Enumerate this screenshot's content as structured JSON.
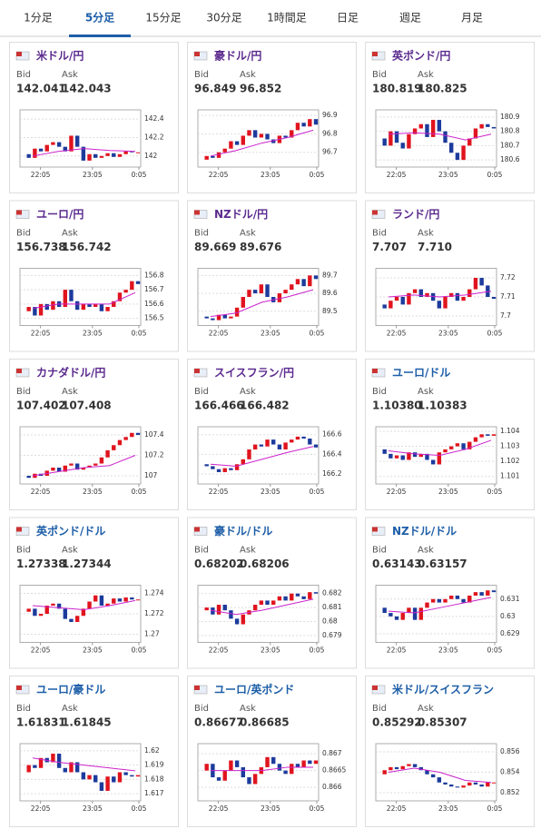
{
  "tabs": [
    "1分足",
    "5分足",
    "15分足",
    "30分足",
    "1時間足",
    "日足",
    "週足",
    "月足"
  ],
  "active_tab": 1,
  "bid_label": "Bid",
  "ask_label": "Ask",
  "xticks": [
    "22:05",
    "23:05",
    "0:05"
  ],
  "panels": [
    {
      "name": "米ドル/円",
      "color": "#5b2a8e",
      "bid": "142.041",
      "ask": "142.043",
      "yticks": [
        142.4,
        142.2,
        142
      ],
      "ylim": [
        141.88,
        142.5
      ],
      "close": [
        142.02,
        141.98,
        142.08,
        142.05,
        142.12,
        142.15,
        142.1,
        142.05,
        142.22,
        142.1,
        141.95,
        142.02,
        141.98,
        142.0,
        142.03,
        141.99,
        142.02,
        142.05,
        142.04,
        142.04
      ],
      "ma": [
        142.0,
        142.05,
        142.08,
        142.06,
        142.05
      ]
    },
    {
      "name": "豪ドル/円",
      "color": "#5b2a8e",
      "bid": "96.849",
      "ask": "96.852",
      "yticks": [
        96.9,
        96.8,
        96.7
      ],
      "ylim": [
        96.62,
        96.93
      ],
      "close": [
        96.66,
        96.68,
        96.67,
        96.7,
        96.72,
        96.76,
        96.74,
        96.79,
        96.82,
        96.78,
        96.8,
        96.77,
        96.75,
        96.79,
        96.78,
        96.82,
        96.86,
        96.84,
        96.88,
        96.85
      ],
      "ma": [
        96.68,
        96.71,
        96.75,
        96.78,
        96.82
      ]
    },
    {
      "name": "英ポンド/円",
      "color": "#5b2a8e",
      "bid": "180.819",
      "ask": "180.825",
      "yticks": [
        180.9,
        180.8,
        180.7,
        180.6
      ],
      "ylim": [
        180.55,
        180.95
      ],
      "close": [
        180.75,
        180.7,
        180.8,
        180.72,
        180.68,
        180.78,
        180.82,
        180.85,
        180.76,
        180.88,
        180.8,
        180.72,
        180.65,
        180.6,
        180.7,
        180.75,
        180.82,
        180.85,
        180.83,
        180.82
      ],
      "ma": [
        180.78,
        180.79,
        180.78,
        180.74,
        180.78
      ]
    },
    {
      "name": "ユーロ/円",
      "color": "#5b2a8e",
      "bid": "156.738",
      "ask": "156.742",
      "yticks": [
        156.8,
        156.7,
        156.6,
        156.5
      ],
      "ylim": [
        156.45,
        156.85
      ],
      "close": [
        156.55,
        156.58,
        156.52,
        156.6,
        156.56,
        156.62,
        156.58,
        156.7,
        156.62,
        156.56,
        156.6,
        156.58,
        156.6,
        156.55,
        156.58,
        156.62,
        156.68,
        156.7,
        156.76,
        156.74
      ],
      "ma": [
        156.57,
        156.6,
        156.6,
        156.6,
        156.68
      ]
    },
    {
      "name": "NZドル/円",
      "color": "#5b2a8e",
      "bid": "89.669",
      "ask": "89.676",
      "yticks": [
        89.7,
        89.6,
        89.5
      ],
      "ylim": [
        89.42,
        89.74
      ],
      "close": [
        89.47,
        89.46,
        89.45,
        89.48,
        89.46,
        89.47,
        89.52,
        89.58,
        89.62,
        89.6,
        89.65,
        89.58,
        89.55,
        89.6,
        89.62,
        89.65,
        89.68,
        89.64,
        89.7,
        89.68
      ],
      "ma": [
        89.47,
        89.49,
        89.55,
        89.58,
        89.62
      ]
    },
    {
      "name": "ランド/円",
      "color": "#5b2a8e",
      "bid": "7.707",
      "ask": "7.710",
      "yticks": [
        7.72,
        7.71,
        7.7
      ],
      "ylim": [
        7.695,
        7.725
      ],
      "close": [
        7.706,
        7.704,
        7.708,
        7.71,
        7.706,
        7.712,
        7.714,
        7.71,
        7.712,
        7.708,
        7.704,
        7.71,
        7.712,
        7.708,
        7.71,
        7.714,
        7.72,
        7.716,
        7.71,
        7.709
      ],
      "ma": [
        7.71,
        7.711,
        7.71,
        7.711,
        7.713
      ]
    },
    {
      "name": "カナダドル/円",
      "color": "#5b2a8e",
      "bid": "107.402",
      "ask": "107.408",
      "yticks": [
        107.4,
        107.2,
        107
      ],
      "ylim": [
        106.92,
        107.48
      ],
      "close": [
        107.0,
        106.98,
        107.02,
        107.0,
        107.05,
        107.08,
        107.04,
        107.1,
        107.12,
        107.06,
        107.08,
        107.1,
        107.12,
        107.18,
        107.25,
        107.3,
        107.35,
        107.38,
        107.42,
        107.4
      ],
      "ma": [
        107.0,
        107.04,
        107.08,
        107.1,
        107.2
      ]
    },
    {
      "name": "スイスフラン/円",
      "color": "#5b2a8e",
      "bid": "166.466",
      "ask": "166.482",
      "yticks": [
        166.6,
        166.4,
        166.2
      ],
      "ylim": [
        166.1,
        166.68
      ],
      "close": [
        166.3,
        166.28,
        166.25,
        166.22,
        166.26,
        166.24,
        166.3,
        166.35,
        166.45,
        166.5,
        166.48,
        166.55,
        166.5,
        166.45,
        166.52,
        166.55,
        166.58,
        166.56,
        166.5,
        166.47
      ],
      "ma": [
        166.3,
        166.28,
        166.35,
        166.42,
        166.48
      ]
    },
    {
      "name": "ユーロ/ドル",
      "color": "#1d5ea8",
      "bid": "1.10380",
      "ask": "1.10383",
      "yticks": [
        1.104,
        1.103,
        1.102,
        1.101
      ],
      "ylim": [
        1.1005,
        1.1043
      ],
      "close": [
        1.1028,
        1.1025,
        1.1022,
        1.1024,
        1.1021,
        1.1026,
        1.1023,
        1.1025,
        1.1021,
        1.1018,
        1.1026,
        1.1028,
        1.103,
        1.1032,
        1.1028,
        1.1033,
        1.1036,
        1.1038,
        1.1037,
        1.1038
      ],
      "ma": [
        1.1027,
        1.1025,
        1.1024,
        1.1028,
        1.1034
      ]
    },
    {
      "name": "英ポンド/ドル",
      "color": "#1d5ea8",
      "bid": "1.27338",
      "ask": "1.27344",
      "yticks": [
        1.274,
        1.272,
        1.27
      ],
      "ylim": [
        1.2692,
        1.2748
      ],
      "close": [
        1.2722,
        1.2725,
        1.2718,
        1.272,
        1.2728,
        1.273,
        1.2725,
        1.2715,
        1.2712,
        1.2718,
        1.2725,
        1.2732,
        1.2738,
        1.2728,
        1.273,
        1.2735,
        1.2732,
        1.2736,
        1.2734,
        1.2734
      ],
      "ma": [
        1.2728,
        1.2726,
        1.2724,
        1.2728,
        1.2733
      ]
    },
    {
      "name": "豪ドル/ドル",
      "color": "#1d5ea8",
      "bid": "0.68202",
      "ask": "0.68206",
      "yticks": [
        0.682,
        0.681,
        0.68,
        0.679
      ],
      "ylim": [
        0.6785,
        0.6826
      ],
      "close": [
        0.6808,
        0.681,
        0.6805,
        0.6812,
        0.6808,
        0.6802,
        0.6798,
        0.6805,
        0.6808,
        0.6812,
        0.6815,
        0.6812,
        0.6815,
        0.6818,
        0.6815,
        0.682,
        0.6818,
        0.6816,
        0.6821,
        0.682
      ],
      "ma": [
        0.6808,
        0.6805,
        0.6808,
        0.6812,
        0.6816
      ]
    },
    {
      "name": "NZドル/ドル",
      "color": "#1d5ea8",
      "bid": "0.63143",
      "ask": "0.63157",
      "yticks": [
        0.631,
        0.63,
        0.629
      ],
      "ylim": [
        0.6285,
        0.6318
      ],
      "close": [
        0.6305,
        0.6302,
        0.63,
        0.6298,
        0.6302,
        0.6305,
        0.6298,
        0.6305,
        0.6308,
        0.631,
        0.6308,
        0.631,
        0.6312,
        0.631,
        0.6308,
        0.6312,
        0.6314,
        0.6312,
        0.6315,
        0.6314
      ],
      "ma": [
        0.6303,
        0.6302,
        0.6305,
        0.6308,
        0.6311
      ]
    },
    {
      "name": "ユーロ/豪ドル",
      "color": "#1d5ea8",
      "bid": "1.61831",
      "ask": "1.61845",
      "yticks": [
        1.62,
        1.619,
        1.618,
        1.617
      ],
      "ylim": [
        1.6165,
        1.6205
      ],
      "close": [
        1.6185,
        1.619,
        1.6188,
        1.6195,
        1.6192,
        1.6198,
        1.6188,
        1.6185,
        1.6192,
        1.6185,
        1.618,
        1.6183,
        1.6178,
        1.6172,
        1.6182,
        1.6178,
        1.6185,
        1.6183,
        1.6182,
        1.6183
      ],
      "ma": [
        1.6195,
        1.6192,
        1.619,
        1.6188,
        1.6186
      ]
    },
    {
      "name": "ユーロ/英ポンド",
      "color": "#1d5ea8",
      "bid": "0.86677",
      "ask": "0.86685",
      "yticks": [
        0.867,
        0.8665,
        0.866
      ],
      "ylim": [
        0.8656,
        0.8673
      ],
      "close": [
        0.8665,
        0.8667,
        0.8663,
        0.8662,
        0.8665,
        0.8668,
        0.8666,
        0.8663,
        0.8661,
        0.8664,
        0.8666,
        0.8669,
        0.8667,
        0.8665,
        0.8664,
        0.8667,
        0.8666,
        0.8668,
        0.8667,
        0.8668
      ],
      "ma": [
        0.8665,
        0.8665,
        0.8665,
        0.8666,
        0.8666
      ]
    },
    {
      "name": "米ドル/スイスフラン",
      "color": "#1d5ea8",
      "bid": "0.85292",
      "ask": "0.85307",
      "yticks": [
        0.856,
        0.854,
        0.852
      ],
      "ylim": [
        0.8512,
        0.8568
      ],
      "close": [
        0.8538,
        0.8542,
        0.8545,
        0.8543,
        0.8546,
        0.8548,
        0.8545,
        0.8542,
        0.8538,
        0.8535,
        0.853,
        0.8528,
        0.8526,
        0.8525,
        0.8527,
        0.853,
        0.8528,
        0.8526,
        0.853,
        0.853
      ],
      "ma": [
        0.854,
        0.8544,
        0.854,
        0.8532,
        0.853
      ]
    }
  ]
}
